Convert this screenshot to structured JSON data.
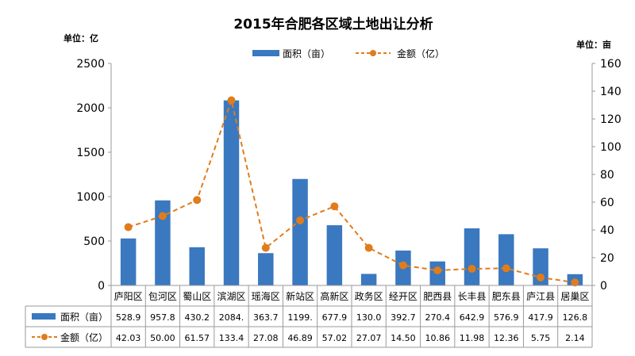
{
  "chart_data": {
    "type": "bar-line-combo",
    "title": "2015年合肥各区域土地出让分析",
    "left_unit": "单位：亿",
    "right_unit": "单位：亩",
    "categories": [
      "庐阳区",
      "包河区",
      "蜀山区",
      "滨湖区",
      "瑶海区",
      "新站区",
      "高新区",
      "政务区",
      "经开区",
      "肥西县",
      "长丰县",
      "肥东县",
      "庐江县",
      "居巢区"
    ],
    "left_axis": {
      "min": 0,
      "max": 2500,
      "ticks": [
        "0",
        "500",
        "1000",
        "1500",
        "2000",
        "2500"
      ]
    },
    "right_axis": {
      "min": 0,
      "max": 160,
      "ticks": [
        "0",
        "20",
        "40",
        "60",
        "80",
        "100",
        "120",
        "140",
        "160"
      ]
    },
    "series": [
      {
        "name": "面积（亩）",
        "kind": "bar",
        "axis": "left",
        "color": "#3a78c0",
        "values": [
          528.9,
          957.8,
          430.2,
          2084,
          363.7,
          1199,
          677.9,
          130.0,
          392.7,
          270.4,
          642.9,
          576.9,
          417.9,
          126.8
        ],
        "labels": [
          "528.9",
          "957.8",
          "430.2",
          "2084.",
          "363.7",
          "1199.",
          "677.9",
          "130.0",
          "392.7",
          "270.4",
          "642.9",
          "576.9",
          "417.9",
          "126.8"
        ]
      },
      {
        "name": "金额（亿）",
        "kind": "line",
        "axis": "right",
        "color": "#e07c1c",
        "values": [
          42.03,
          50.0,
          61.57,
          133.4,
          27.08,
          46.89,
          57.02,
          27.07,
          14.5,
          10.86,
          11.98,
          12.36,
          5.75,
          2.14
        ],
        "labels": [
          "42.03",
          "50.00",
          "61.57",
          "133.4",
          "27.08",
          "46.89",
          "57.02",
          "27.07",
          "14.50",
          "10.86",
          "11.98",
          "12.36",
          "5.75",
          "2.14"
        ]
      }
    ],
    "legend_position": "top",
    "grid": false
  }
}
